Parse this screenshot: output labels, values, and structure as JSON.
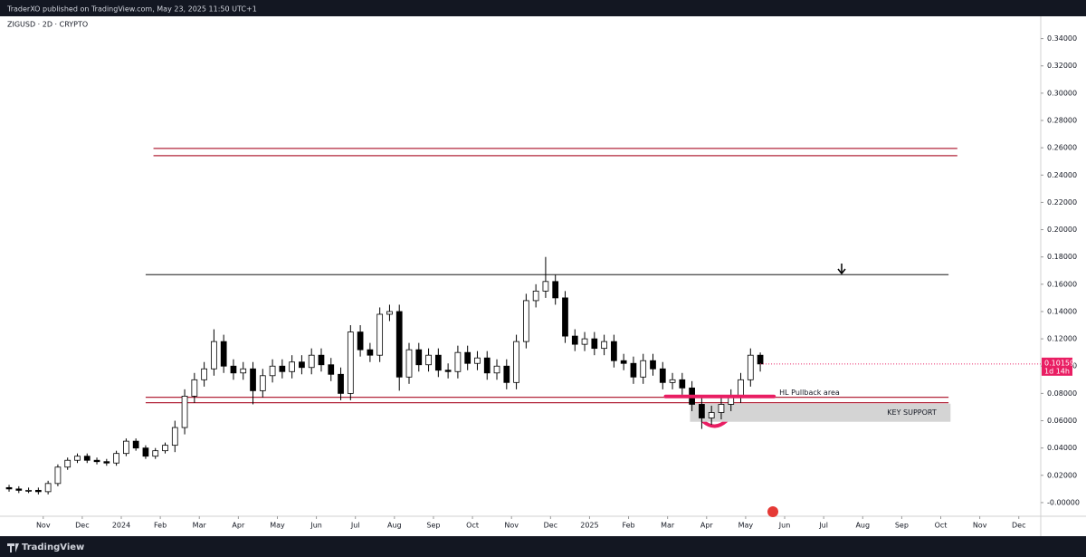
{
  "header": {
    "text": "TraderXO published on TradingView.com, May 23, 2025 11:50 UTC+1"
  },
  "footer": {
    "brand": "TradingView"
  },
  "chart_data": {
    "type": "candlestick",
    "title": "ZIGUSD · 2D · CRYPTO",
    "up_color": "#ffffff",
    "down_color": "#000000",
    "wick_color": "#000000",
    "open": [
      0.011,
      0.01,
      0.009,
      0.009,
      0.008,
      0.014,
      0.026,
      0.031,
      0.034,
      0.031,
      0.03,
      0.029,
      0.036,
      0.045,
      0.04,
      0.034,
      0.038,
      0.042,
      0.055,
      0.078,
      0.09,
      0.098,
      0.118,
      0.1,
      0.095,
      0.098,
      0.082,
      0.093,
      0.1,
      0.096,
      0.103,
      0.099,
      0.108,
      0.101,
      0.094,
      0.08,
      0.125,
      0.112,
      0.108,
      0.138,
      0.14,
      0.092,
      0.112,
      0.101,
      0.108,
      0.097,
      0.096,
      0.11,
      0.102,
      0.106,
      0.095,
      0.1,
      0.088,
      0.118,
      0.148,
      0.155,
      0.162,
      0.15,
      0.122,
      0.116,
      0.12,
      0.113,
      0.118,
      0.104,
      0.102,
      0.092,
      0.104,
      0.098,
      0.088,
      0.09,
      0.084,
      0.072,
      0.062,
      0.066,
      0.072,
      0.078,
      0.09,
      0.108
    ],
    "high": [
      0.013,
      0.012,
      0.011,
      0.011,
      0.016,
      0.028,
      0.033,
      0.036,
      0.036,
      0.033,
      0.032,
      0.038,
      0.047,
      0.047,
      0.042,
      0.04,
      0.044,
      0.06,
      0.083,
      0.095,
      0.103,
      0.127,
      0.123,
      0.105,
      0.103,
      0.103,
      0.098,
      0.105,
      0.105,
      0.108,
      0.108,
      0.113,
      0.113,
      0.106,
      0.099,
      0.13,
      0.13,
      0.117,
      0.143,
      0.145,
      0.145,
      0.117,
      0.117,
      0.113,
      0.113,
      0.102,
      0.115,
      0.115,
      0.111,
      0.111,
      0.105,
      0.105,
      0.123,
      0.153,
      0.16,
      0.18,
      0.167,
      0.155,
      0.127,
      0.125,
      0.125,
      0.123,
      0.123,
      0.109,
      0.107,
      0.109,
      0.109,
      0.103,
      0.095,
      0.095,
      0.089,
      0.077,
      0.071,
      0.077,
      0.083,
      0.095,
      0.113,
      0.11
    ],
    "low": [
      0.008,
      0.007,
      0.007,
      0.006,
      0.006,
      0.012,
      0.024,
      0.029,
      0.029,
      0.028,
      0.027,
      0.027,
      0.034,
      0.038,
      0.032,
      0.032,
      0.036,
      0.037,
      0.05,
      0.073,
      0.085,
      0.093,
      0.095,
      0.09,
      0.09,
      0.072,
      0.077,
      0.088,
      0.091,
      0.091,
      0.094,
      0.094,
      0.096,
      0.089,
      0.075,
      0.075,
      0.107,
      0.103,
      0.103,
      0.133,
      0.082,
      0.087,
      0.096,
      0.096,
      0.092,
      0.091,
      0.091,
      0.097,
      0.097,
      0.09,
      0.09,
      0.083,
      0.083,
      0.113,
      0.143,
      0.15,
      0.145,
      0.117,
      0.111,
      0.111,
      0.108,
      0.108,
      0.099,
      0.097,
      0.087,
      0.087,
      0.093,
      0.083,
      0.083,
      0.079,
      0.067,
      0.054,
      0.057,
      0.061,
      0.067,
      0.073,
      0.085,
      0.096
    ],
    "close": [
      0.01,
      0.009,
      0.009,
      0.008,
      0.014,
      0.026,
      0.031,
      0.034,
      0.031,
      0.03,
      0.029,
      0.036,
      0.045,
      0.04,
      0.034,
      0.038,
      0.042,
      0.055,
      0.078,
      0.09,
      0.098,
      0.118,
      0.1,
      0.095,
      0.098,
      0.082,
      0.093,
      0.1,
      0.096,
      0.103,
      0.099,
      0.108,
      0.101,
      0.094,
      0.08,
      0.125,
      0.112,
      0.108,
      0.138,
      0.14,
      0.092,
      0.112,
      0.101,
      0.108,
      0.097,
      0.096,
      0.11,
      0.102,
      0.106,
      0.095,
      0.1,
      0.088,
      0.118,
      0.148,
      0.155,
      0.162,
      0.15,
      0.122,
      0.116,
      0.12,
      0.113,
      0.118,
      0.104,
      0.102,
      0.092,
      0.104,
      0.098,
      0.088,
      0.09,
      0.084,
      0.072,
      0.062,
      0.066,
      0.072,
      0.078,
      0.09,
      0.108,
      0.10159
    ],
    "last_price_color": "#e91e63",
    "countdown": "1d 14h",
    "xlim": [
      -0.93,
      105.75
    ],
    "xticks": [
      {
        "value": 3.5,
        "label": "Nov"
      },
      {
        "value": 7.5,
        "label": "Dec"
      },
      {
        "value": 11.5,
        "label": "2024"
      },
      {
        "value": 15.5,
        "label": "Feb"
      },
      {
        "value": 19.5,
        "label": "Mar"
      },
      {
        "value": 23.5,
        "label": "Apr"
      },
      {
        "value": 27.5,
        "label": "May"
      },
      {
        "value": 31.5,
        "label": "Jun"
      },
      {
        "value": 35.5,
        "label": "Jul"
      },
      {
        "value": 39.5,
        "label": "Aug"
      },
      {
        "value": 43.5,
        "label": "Sep"
      },
      {
        "value": 47.5,
        "label": "Oct"
      },
      {
        "value": 51.5,
        "label": "Nov"
      },
      {
        "value": 55.5,
        "label": "Dec"
      },
      {
        "value": 59.5,
        "label": "2025"
      },
      {
        "value": 63.5,
        "label": "Feb"
      },
      {
        "value": 67.5,
        "label": "Mar"
      },
      {
        "value": 71.5,
        "label": "Apr"
      },
      {
        "value": 75.5,
        "label": "May"
      },
      {
        "value": 79.5,
        "label": "Jun"
      },
      {
        "value": 83.5,
        "label": "Jul"
      },
      {
        "value": 87.5,
        "label": "Aug"
      },
      {
        "value": 91.5,
        "label": "Sep"
      },
      {
        "value": 95.5,
        "label": "Oct"
      },
      {
        "value": 99.5,
        "label": "Nov"
      },
      {
        "value": 103.5,
        "label": "Dec"
      }
    ],
    "ylim": [
      -0.01,
      0.355
    ],
    "yticks": [
      {
        "value": 0,
        "label": "-0.00000"
      },
      {
        "value": 0.02,
        "label": "0.02000"
      },
      {
        "value": 0.04,
        "label": "0.04000"
      },
      {
        "value": 0.06,
        "label": "0.06000"
      },
      {
        "value": 0.08,
        "label": "0.08000"
      },
      {
        "value": 0.1,
        "label": "0.10000"
      },
      {
        "value": 0.12,
        "label": "0.12000"
      },
      {
        "value": 0.14,
        "label": "0.14000"
      },
      {
        "value": 0.16,
        "label": "0.16000"
      },
      {
        "value": 0.18,
        "label": "0.18000"
      },
      {
        "value": 0.2,
        "label": "0.20000"
      },
      {
        "value": 0.22,
        "label": "0.22000"
      },
      {
        "value": 0.24,
        "label": "0.24000"
      },
      {
        "value": 0.26,
        "label": "0.26000"
      },
      {
        "value": 0.28,
        "label": "0.28000"
      },
      {
        "value": 0.3,
        "label": "0.30000"
      },
      {
        "value": 0.32,
        "label": "0.32000"
      },
      {
        "value": 0.34,
        "label": "0.34000"
      }
    ],
    "grid": false,
    "levels": [
      {
        "value": 0.2595,
        "from": 14.8,
        "to": 97.2,
        "color": "#b2253a"
      },
      {
        "value": 0.2542,
        "from": 14.8,
        "to": 97.2,
        "color": "#b2253a"
      },
      {
        "value": 0.167,
        "from": 14.0,
        "to": 96.3,
        "color": "#555555"
      },
      {
        "value": 0.0772,
        "from": 14.0,
        "to": 96.3,
        "color": "#b2253a"
      },
      {
        "value": 0.0732,
        "from": 14.0,
        "to": 96.3,
        "color": "#b2253a"
      }
    ],
    "zones": [
      {
        "label": "KEY SUPPORT",
        "top": 0.0725,
        "bottom": 0.0592,
        "from": 69.8,
        "to": 96.5,
        "color": "#d4d4d4"
      }
    ],
    "markers": [
      {
        "label": "HL Pullback area",
        "value": 0.0778,
        "from": 67.3,
        "to": 78.4,
        "color": "#e91e63"
      }
    ]
  }
}
